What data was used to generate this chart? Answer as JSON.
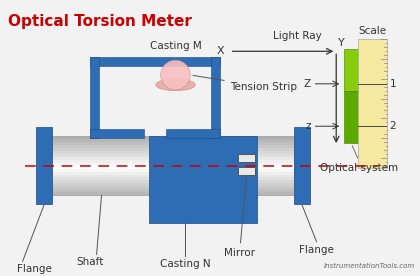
{
  "title": "Optical Torsion Meter",
  "title_color": "#cc0000",
  "bg_color": "#f2f2f2",
  "flange_color": "#2e6db4",
  "casting_n_color": "#2e6db4",
  "casting_m_color": "#2e6db4",
  "tension_strip_color": "#f4a0a0",
  "mirror_color": "#e0e0e0",
  "dashed_line_color": "#cc0000",
  "scale_bg_color": "#f5e8a0",
  "watermark": "InstrumentationTools.com",
  "labels": {
    "flange_left": "Flange",
    "flange_right": "Flange",
    "shaft": "Shaft",
    "casting_m": "Casting M",
    "casting_n": "Casting N",
    "tension_strip": "Tension Strip",
    "mirror": "Mirror",
    "light_ray": "Light Ray",
    "optical_system": "Optical system",
    "scale": "Scale",
    "x_label": "X",
    "y_label": "Y",
    "z_upper": "Z",
    "z_lower": "z"
  }
}
